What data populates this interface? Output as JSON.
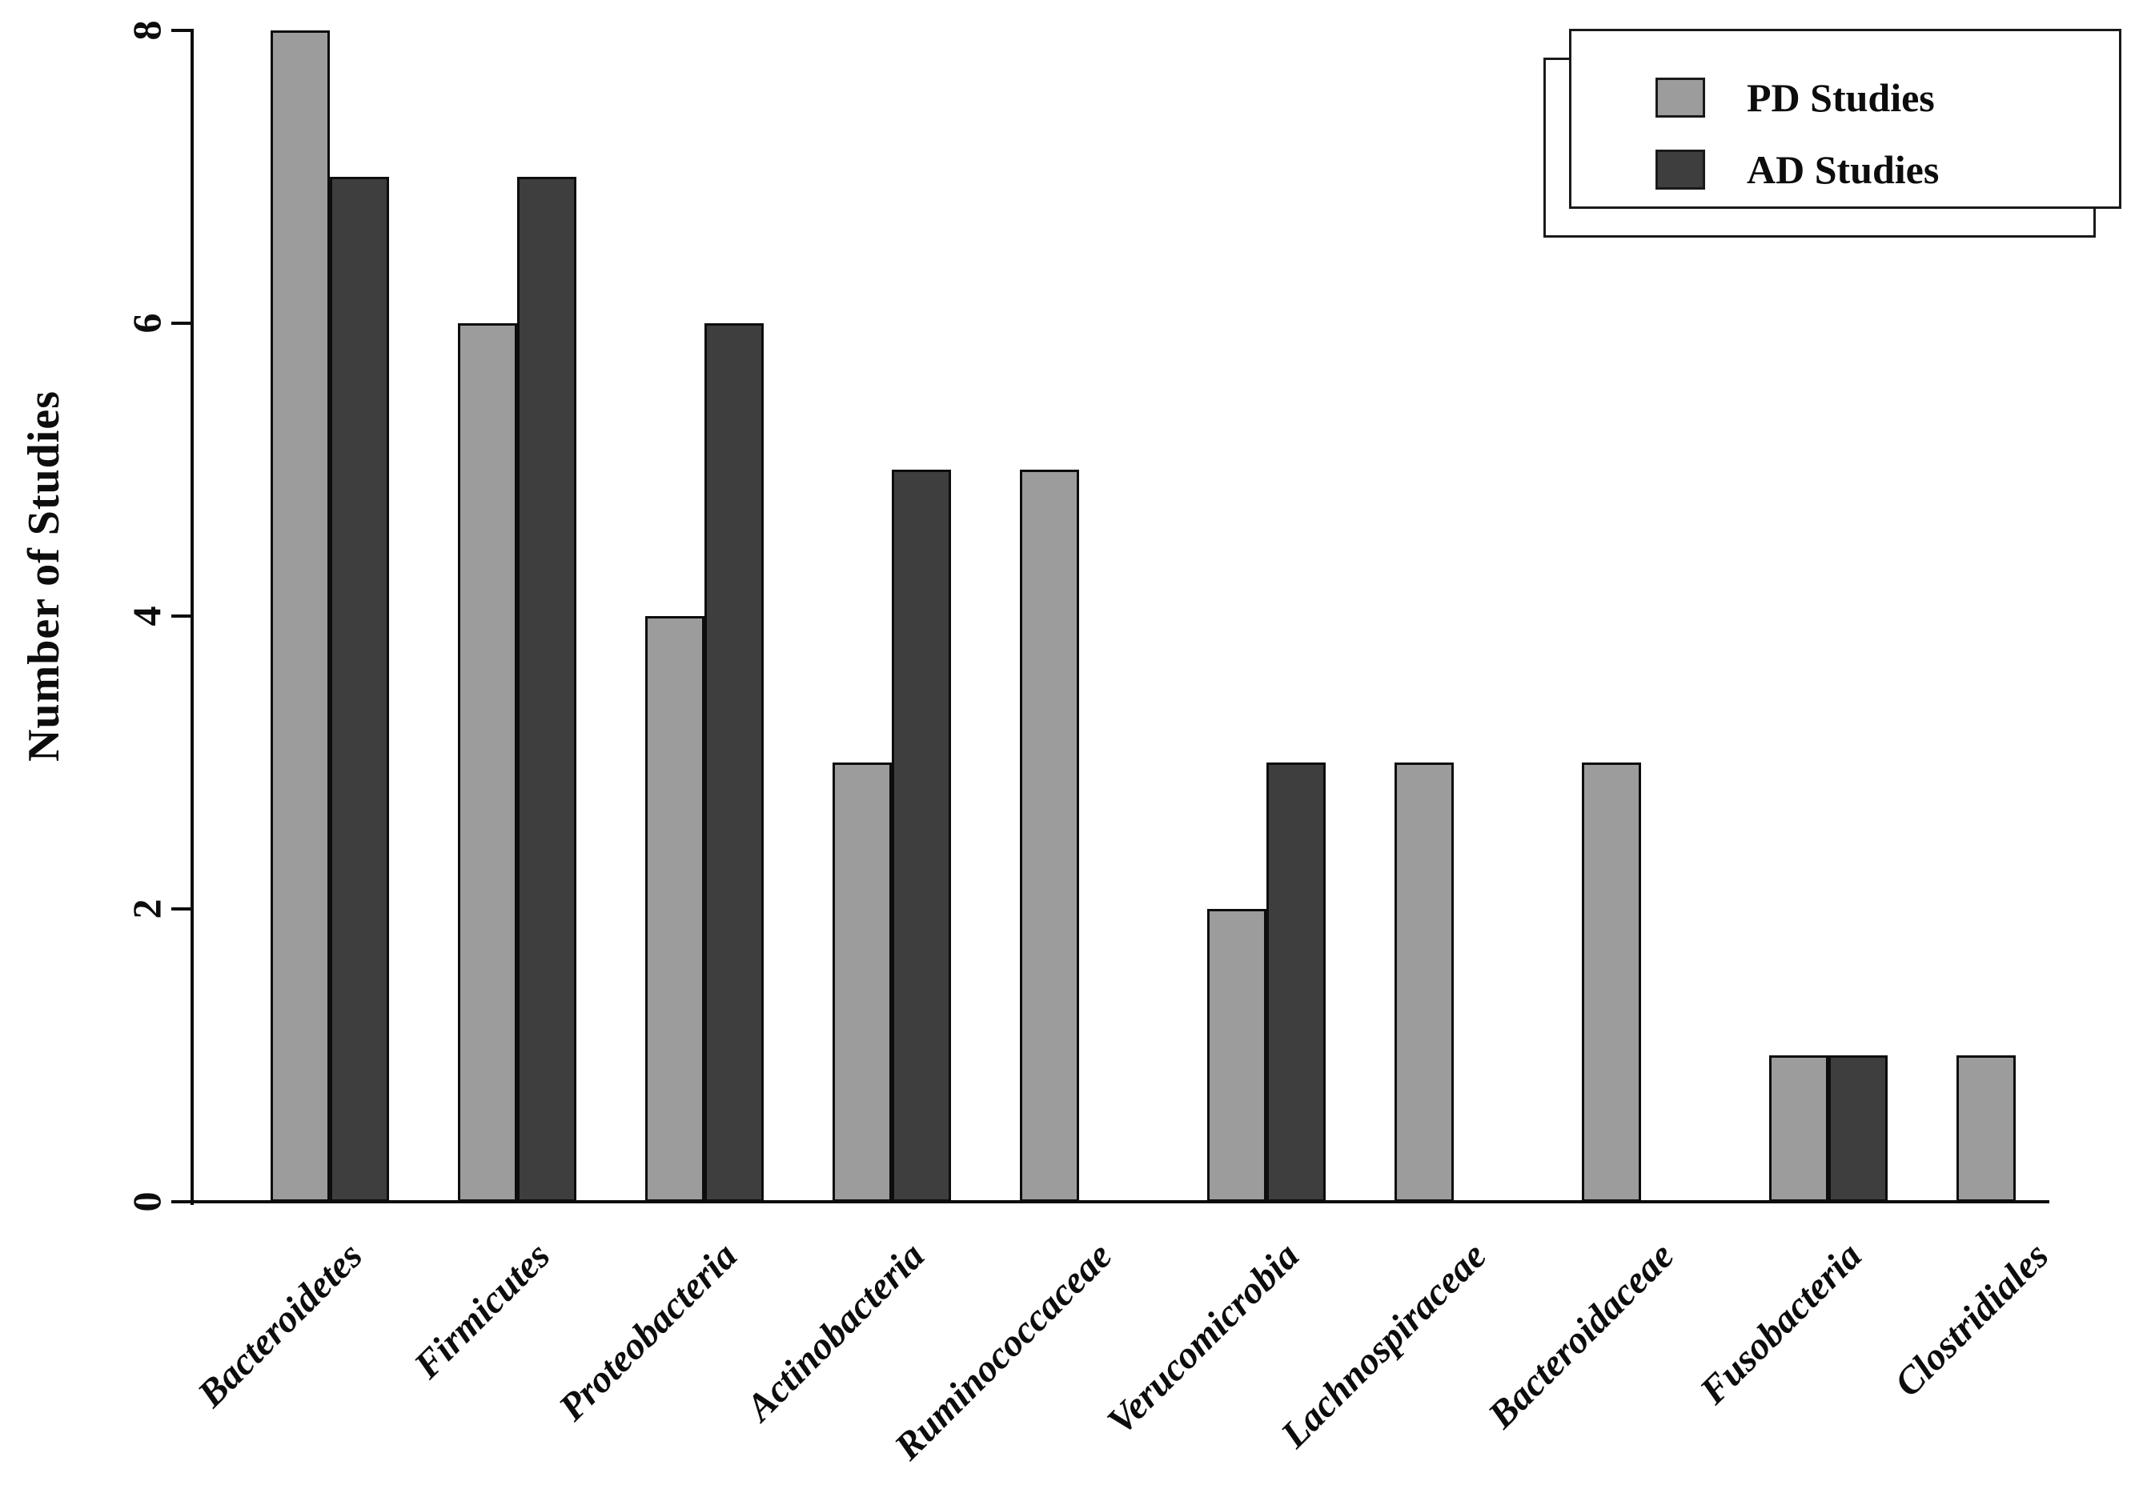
{
  "chart_data": {
    "type": "bar",
    "title": "",
    "ylabel": "Number of Studies",
    "xlabel": "",
    "ylim": [
      0,
      8
    ],
    "yticks": [
      0,
      2,
      4,
      6,
      8
    ],
    "grid": false,
    "legend_position": "top-right",
    "categories": [
      "Bacteroidetes",
      "Firmicutes",
      "Proteobacteria",
      "Actinobacteria",
      "Ruminococcaceae",
      "Verucomicrobia",
      "Lachnospiraceae",
      "Bacteroidaceae",
      "Fusobacteria",
      "Clostridiales"
    ],
    "series": [
      {
        "name": "PD Studies",
        "color": "#9c9c9c",
        "values": [
          8,
          6,
          4,
          3,
          5,
          2,
          3,
          3,
          1,
          1
        ]
      },
      {
        "name": "AD Studies",
        "color": "#3e3e3e",
        "values": [
          7,
          7,
          6,
          5,
          0,
          3,
          0,
          0,
          1,
          0
        ]
      }
    ],
    "bar_outline_color": "#0d0d0d",
    "axis_color": "#0d0d0d"
  }
}
